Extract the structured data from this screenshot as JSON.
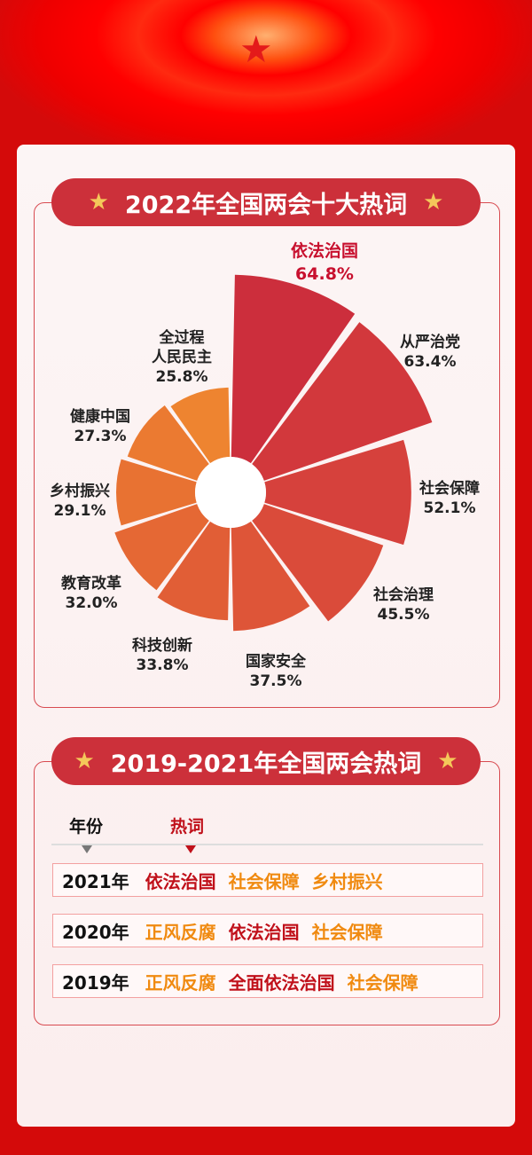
{
  "section1": {
    "title": "2022年全国两会十大热词"
  },
  "chart_data": {
    "type": "rose",
    "title": "2022年全国两会十大热词",
    "categories": [
      "依法治国",
      "从严治党",
      "社会保障",
      "社会治理",
      "国家安全",
      "科技创新",
      "教育改革",
      "乡村振兴",
      "健康中国",
      "全过程人民民主"
    ],
    "labels": [
      [
        "依法治国"
      ],
      [
        "从严治党"
      ],
      [
        "社会保障"
      ],
      [
        "社会治理"
      ],
      [
        "国家安全"
      ],
      [
        "科技创新"
      ],
      [
        "教育改革"
      ],
      [
        "乡村振兴"
      ],
      [
        "健康中国"
      ],
      [
        "全过程",
        "人民民主"
      ]
    ],
    "values": [
      64.8,
      63.4,
      52.1,
      45.5,
      37.5,
      33.8,
      32.0,
      29.1,
      27.3,
      25.8
    ],
    "value_labels": [
      "64.8%",
      "63.4%",
      "52.1%",
      "45.5%",
      "37.5%",
      "33.8%",
      "32.0%",
      "29.1%",
      "27.3%",
      "25.8%"
    ],
    "colors": [
      "#cc2e3c",
      "#d2383c",
      "#d6413c",
      "#da4b3a",
      "#de5538",
      "#e15e36",
      "#e56834",
      "#e87232",
      "#eb7a31",
      "#ee8430"
    ]
  },
  "section2": {
    "title": "2019-2021年全国两会热词",
    "col_year": "年份",
    "col_kw": "热词",
    "rows": [
      {
        "year": "2021年",
        "kws": [
          {
            "t": "依法治国",
            "c": "red"
          },
          {
            "t": "社会保障",
            "c": "org"
          },
          {
            "t": "乡村振兴",
            "c": "org"
          }
        ]
      },
      {
        "year": "2020年",
        "kws": [
          {
            "t": "正风反腐",
            "c": "org"
          },
          {
            "t": "依法治国",
            "c": "red"
          },
          {
            "t": "社会保障",
            "c": "org"
          }
        ]
      },
      {
        "year": "2019年",
        "kws": [
          {
            "t": "正风反腐",
            "c": "org"
          },
          {
            "t": "全面依法治国",
            "c": "red"
          },
          {
            "t": "社会保障",
            "c": "org"
          }
        ]
      }
    ]
  }
}
